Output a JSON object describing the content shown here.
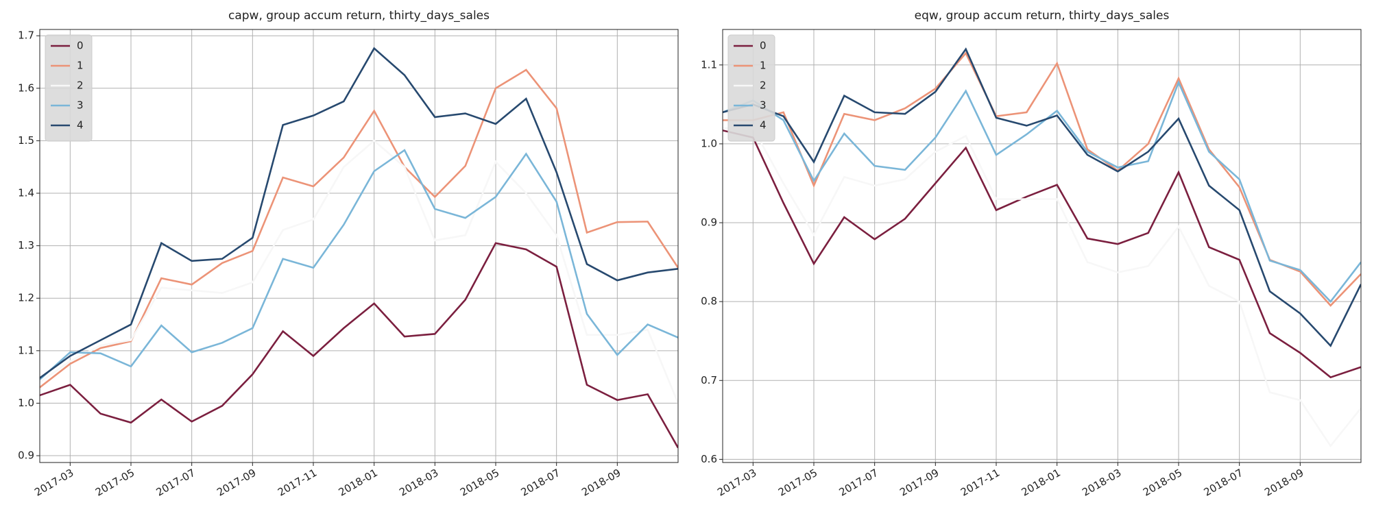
{
  "chart_data": [
    {
      "type": "line",
      "title": "capw, group accum return, thirty_days_sales",
      "x": [
        "2017-02",
        "2017-03",
        "2017-04",
        "2017-05",
        "2017-06",
        "2017-07",
        "2017-08",
        "2017-09",
        "2017-10",
        "2017-11",
        "2017-12",
        "2018-01",
        "2018-02",
        "2018-03",
        "2018-04",
        "2018-05",
        "2018-06",
        "2018-07",
        "2018-08",
        "2018-09",
        "2018-10",
        "2018-11"
      ],
      "xlim": [
        "2017-02",
        "2018-11"
      ],
      "xticks": [
        "2017-03",
        "2017-05",
        "2017-07",
        "2017-09",
        "2017-11",
        "2018-01",
        "2018-03",
        "2018-05",
        "2018-07",
        "2018-09"
      ],
      "ylim": [
        0.887,
        1.712
      ],
      "yticks": [
        {
          "value": 0.9,
          "label": "0.9"
        },
        {
          "value": 1.0,
          "label": "1.0"
        },
        {
          "value": 1.1,
          "label": "1.1"
        },
        {
          "value": 1.2,
          "label": "1.2"
        },
        {
          "value": 1.3,
          "label": "1.3"
        },
        {
          "value": 1.4,
          "label": "1.4"
        },
        {
          "value": 1.5,
          "label": "1.5"
        },
        {
          "value": 1.6,
          "label": "1.6"
        },
        {
          "value": 1.7,
          "label": "1.7"
        }
      ],
      "grid": true,
      "legend": "upper left",
      "series": [
        {
          "name": "0",
          "color": "#7b1f3f",
          "values": [
            1.015,
            1.035,
            0.98,
            0.963,
            1.007,
            0.965,
            0.995,
            1.055,
            1.137,
            1.09,
            1.143,
            1.19,
            1.127,
            1.132,
            1.197,
            1.305,
            1.293,
            1.26,
            1.035,
            1.006,
            1.017,
            0.915
          ]
        },
        {
          "name": "1",
          "color": "#ec9377",
          "values": [
            1.03,
            1.075,
            1.105,
            1.118,
            1.238,
            1.226,
            1.267,
            1.29,
            1.43,
            1.413,
            1.468,
            1.557,
            1.45,
            1.393,
            1.452,
            1.6,
            1.635,
            1.562,
            1.325,
            1.345,
            1.346,
            1.258
          ]
        },
        {
          "name": "2",
          "color": "#f7f7f7",
          "values": [
            1.04,
            1.08,
            1.11,
            1.12,
            1.22,
            1.215,
            1.21,
            1.23,
            1.33,
            1.35,
            1.45,
            1.5,
            1.45,
            1.31,
            1.32,
            1.46,
            1.4,
            1.32,
            1.13,
            1.13,
            1.14,
            1.0
          ]
        },
        {
          "name": "3",
          "color": "#7ab6d8",
          "values": [
            1.045,
            1.097,
            1.095,
            1.07,
            1.148,
            1.097,
            1.115,
            1.143,
            1.275,
            1.258,
            1.34,
            1.442,
            1.482,
            1.37,
            1.353,
            1.393,
            1.475,
            1.384,
            1.17,
            1.092,
            1.15,
            1.125
          ]
        },
        {
          "name": "4",
          "color": "#27496f",
          "values": [
            1.048,
            1.09,
            1.12,
            1.15,
            1.305,
            1.271,
            1.275,
            1.315,
            1.53,
            1.548,
            1.575,
            1.676,
            1.625,
            1.545,
            1.552,
            1.532,
            1.58,
            1.44,
            1.265,
            1.234,
            1.249,
            1.256
          ]
        }
      ]
    },
    {
      "type": "line",
      "title": "eqw, group accum return, thirty_days_sales",
      "x": [
        "2017-02",
        "2017-03",
        "2017-04",
        "2017-05",
        "2017-06",
        "2017-07",
        "2017-08",
        "2017-09",
        "2017-10",
        "2017-11",
        "2017-12",
        "2018-01",
        "2018-02",
        "2018-03",
        "2018-04",
        "2018-05",
        "2018-06",
        "2018-07",
        "2018-08",
        "2018-09",
        "2018-10",
        "2018-11"
      ],
      "xlim": [
        "2017-02",
        "2018-11"
      ],
      "xticks": [
        "2017-03",
        "2017-05",
        "2017-07",
        "2017-09",
        "2017-11",
        "2018-01",
        "2018-03",
        "2018-05",
        "2018-07",
        "2018-09"
      ],
      "ylim": [
        0.596,
        1.145
      ],
      "yticks": [
        0.6,
        0.7,
        0.8,
        0.9,
        {
          "value": 1.0,
          "label": "1.0"
        },
        1.1
      ],
      "grid": true,
      "legend": "upper left",
      "series": [
        {
          "name": "0",
          "color": "#7b1f3f",
          "values": [
            1.017,
            1.008,
            0.925,
            0.848,
            0.907,
            0.879,
            0.905,
            0.95,
            0.995,
            0.916,
            0.933,
            0.948,
            0.88,
            0.873,
            0.887,
            0.964,
            0.869,
            0.853,
            0.76,
            0.735,
            0.704,
            0.717
          ]
        },
        {
          "name": "1",
          "color": "#ec9377",
          "values": [
            1.03,
            1.03,
            1.04,
            0.947,
            1.038,
            1.03,
            1.045,
            1.07,
            1.115,
            1.035,
            1.04,
            1.102,
            0.993,
            0.966,
            1.0,
            1.083,
            0.993,
            0.945,
            0.853,
            0.838,
            0.795,
            0.835
          ]
        },
        {
          "name": "2",
          "color": "#f7f7f7",
          "values": [
            1.02,
            1.02,
            0.95,
            0.885,
            0.958,
            0.947,
            0.955,
            0.99,
            1.01,
            0.93,
            0.93,
            0.93,
            0.85,
            0.837,
            0.845,
            0.895,
            0.82,
            0.8,
            0.685,
            0.675,
            0.617,
            0.665
          ]
        },
        {
          "name": "3",
          "color": "#7ab6d8",
          "values": [
            1.04,
            1.055,
            1.03,
            0.953,
            1.013,
            0.972,
            0.967,
            1.008,
            1.067,
            0.986,
            1.012,
            1.042,
            0.99,
            0.97,
            0.978,
            1.078,
            0.99,
            0.955,
            0.852,
            0.84,
            0.8,
            0.85
          ]
        },
        {
          "name": "4",
          "color": "#27496f",
          "values": [
            1.04,
            1.05,
            1.035,
            0.977,
            1.061,
            1.04,
            1.038,
            1.066,
            1.12,
            1.033,
            1.023,
            1.036,
            0.986,
            0.965,
            0.99,
            1.032,
            0.947,
            0.916,
            0.813,
            0.785,
            0.744,
            0.822
          ]
        }
      ]
    }
  ]
}
